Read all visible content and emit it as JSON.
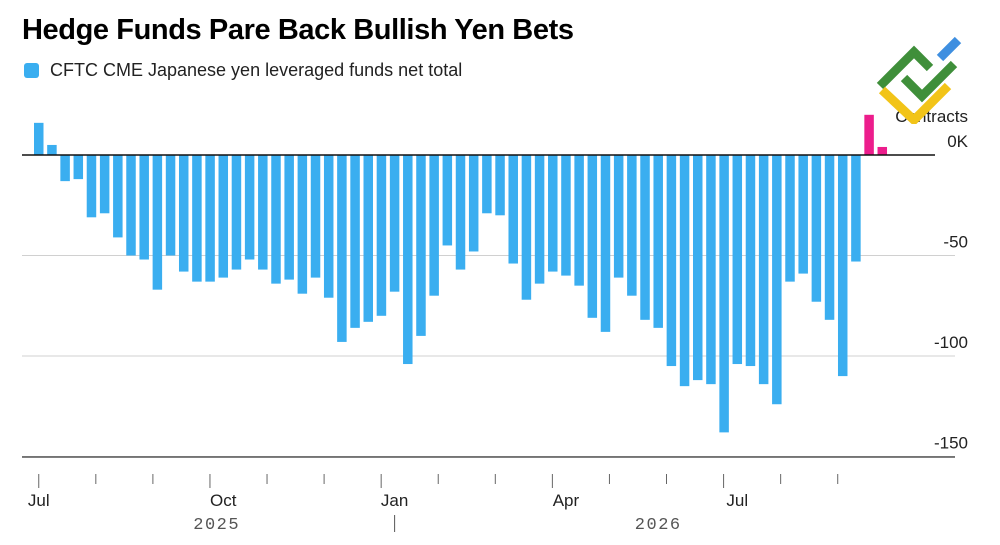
{
  "chart_data": {
    "type": "bar",
    "title": "Hedge Funds Pare Back Bullish Yen Bets",
    "series": [
      {
        "name": "CFTC CME Japanese yen leveraged funds net total",
        "color": "#3aaef0",
        "values": [
          16,
          5,
          -13,
          -12,
          -31,
          -29,
          -41,
          -50,
          -52,
          -67,
          -50,
          -58,
          -63,
          -63,
          -61,
          -57,
          -52,
          -57,
          -64,
          -62,
          -69,
          -61,
          -71,
          -93,
          -86,
          -83,
          -80,
          -68,
          -104,
          -90,
          -70,
          -45,
          -57,
          -48,
          -29,
          -30,
          -54,
          -72,
          -64,
          -58,
          -60,
          -65,
          -81,
          -88,
          -61,
          -70,
          -82,
          -86,
          -105,
          -115,
          -112,
          -114,
          -138,
          -104,
          -105,
          -114,
          -124,
          -63,
          -59,
          -73,
          -82,
          -110,
          -53
        ],
        "highlight_color": "#ec1d8c",
        "highlight_values": [
          20,
          4
        ]
      }
    ],
    "ylabel": "Contracts",
    "y_ticks": [
      {
        "value": 0,
        "label": "0K"
      },
      {
        "value": -50,
        "label": "-50"
      },
      {
        "value": -100,
        "label": "-100"
      },
      {
        "value": -150,
        "label": "-150"
      }
    ],
    "ylim": [
      -150,
      20
    ],
    "x_ticks": [
      {
        "label": "Jul",
        "bar": 0
      },
      {
        "label": "Oct",
        "bar": 14
      },
      {
        "label": "Jan",
        "bar": 27
      },
      {
        "label": "Apr",
        "bar": 40
      },
      {
        "label": "Jul",
        "bar": 53
      }
    ],
    "year_labels": [
      {
        "label": "2025",
        "bar": 13.5
      },
      {
        "label": "2026",
        "bar": 47
      }
    ],
    "grid": true,
    "legend_position": "top-left"
  }
}
